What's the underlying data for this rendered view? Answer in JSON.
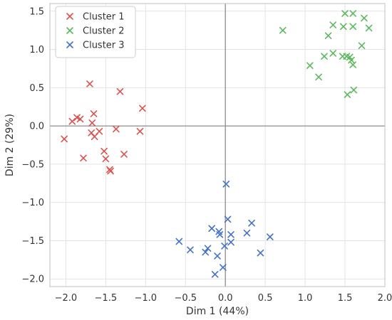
{
  "chart_data": {
    "type": "scatter",
    "xlabel": "Dim 1 (44%)",
    "ylabel": "Dim 2 (29%)",
    "xlim": [
      -2.2,
      2.0
    ],
    "ylim": [
      -2.1,
      1.6
    ],
    "x_ticks": [
      -2.0,
      -1.5,
      -1.0,
      -0.5,
      0.0,
      0.5,
      1.0,
      1.5,
      2.0
    ],
    "x_tick_labels": [
      "−2.0",
      "−1.5",
      "−1.0",
      "−0.5",
      "0.0",
      "0.5",
      "1.0",
      "1.5",
      "2.0"
    ],
    "y_ticks": [
      -2.0,
      -1.5,
      -1.0,
      -0.5,
      0.0,
      0.5,
      1.0,
      1.5
    ],
    "y_tick_labels": [
      "−2.0",
      "−1.5",
      "−1.0",
      "−0.5",
      "0.0",
      "0.5",
      "1.0",
      "1.5"
    ],
    "grid": true,
    "zero_lines": true,
    "legend": "top-left",
    "marker": "x",
    "series": [
      {
        "name": "Cluster 1",
        "color": "#d9534f",
        "points": [
          [
            -2.02,
            -0.17
          ],
          [
            -1.92,
            0.06
          ],
          [
            -1.86,
            0.11
          ],
          [
            -1.82,
            0.09
          ],
          [
            -1.78,
            -0.42
          ],
          [
            -1.7,
            0.55
          ],
          [
            -1.68,
            -0.09
          ],
          [
            -1.67,
            0.04
          ],
          [
            -1.65,
            0.16
          ],
          [
            -1.64,
            -0.14
          ],
          [
            -1.58,
            -0.07
          ],
          [
            -1.52,
            -0.33
          ],
          [
            -1.5,
            -0.43
          ],
          [
            -1.45,
            -0.57
          ],
          [
            -1.44,
            -0.59
          ],
          [
            -1.37,
            -0.04
          ],
          [
            -1.32,
            0.45
          ],
          [
            -1.27,
            -0.37
          ],
          [
            -1.07,
            -0.07
          ],
          [
            -1.04,
            0.23
          ]
        ]
      },
      {
        "name": "Cluster 2",
        "color": "#5cb85c",
        "points": [
          [
            0.72,
            1.25
          ],
          [
            1.06,
            0.79
          ],
          [
            1.17,
            0.64
          ],
          [
            1.24,
            0.91
          ],
          [
            1.29,
            1.18
          ],
          [
            1.35,
            0.95
          ],
          [
            1.35,
            1.32
          ],
          [
            1.47,
            0.91
          ],
          [
            1.48,
            1.3
          ],
          [
            1.5,
            1.47
          ],
          [
            1.52,
            0.91
          ],
          [
            1.53,
            0.41
          ],
          [
            1.56,
            0.9
          ],
          [
            1.58,
            0.86
          ],
          [
            1.6,
            1.3
          ],
          [
            1.6,
            1.47
          ],
          [
            1.6,
            0.8
          ],
          [
            1.61,
            0.47
          ],
          [
            1.71,
            1.05
          ],
          [
            1.74,
            1.41
          ],
          [
            1.8,
            1.28
          ]
        ]
      },
      {
        "name": "Cluster 3",
        "color": "#4472c4",
        "points": [
          [
            -0.58,
            -1.51
          ],
          [
            -0.44,
            -1.62
          ],
          [
            -0.25,
            -1.65
          ],
          [
            -0.22,
            -1.6
          ],
          [
            -0.17,
            -1.34
          ],
          [
            -0.13,
            -1.94
          ],
          [
            -0.1,
            -1.7
          ],
          [
            -0.08,
            -1.38
          ],
          [
            -0.07,
            -1.42
          ],
          [
            -0.03,
            -1.85
          ],
          [
            -0.01,
            -1.57
          ],
          [
            0.01,
            -0.76
          ],
          [
            0.03,
            -1.22
          ],
          [
            0.07,
            -1.42
          ],
          [
            0.07,
            -1.52
          ],
          [
            0.27,
            -1.4
          ],
          [
            0.33,
            -1.27
          ],
          [
            0.44,
            -1.66
          ],
          [
            0.56,
            -1.45
          ]
        ]
      }
    ]
  }
}
